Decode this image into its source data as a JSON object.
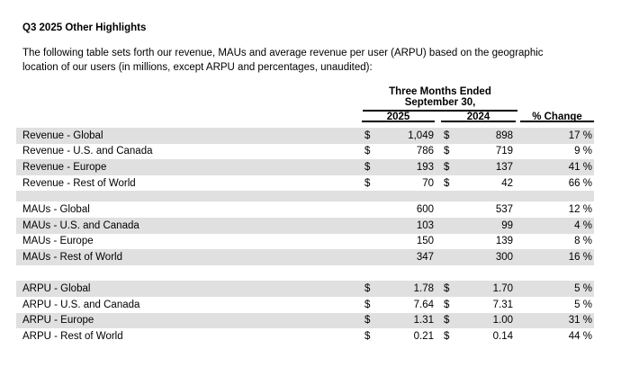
{
  "page": {
    "title": "Q3 2025 Other Highlights",
    "intro_line1": "The following table sets forth our revenue, MAUs and average revenue per user (ARPU) based on the geographic",
    "intro_line2": "location of our users (in millions, except ARPU and percentages, unaudited):"
  },
  "table": {
    "header": {
      "period_line1": "Three Months Ended",
      "period_line2": "September 30,",
      "col_2025": "2025",
      "col_2024": "2024",
      "pct_change": "% Change"
    },
    "colors": {
      "row_shading": "#e0e0e0",
      "rule": "#000000",
      "text": "#000000"
    },
    "rows": [
      {
        "label": "Revenue - Global",
        "cur1": "$",
        "v2025": "1,049",
        "cur2": "$",
        "v2024": "898",
        "change": "17 %",
        "shaded": true
      },
      {
        "label": "Revenue - U.S. and Canada",
        "cur1": "$",
        "v2025": "786",
        "cur2": "$",
        "v2024": "719",
        "change": "9 %",
        "shaded": false
      },
      {
        "label": "Revenue - Europe",
        "cur1": "$",
        "v2025": "193",
        "cur2": "$",
        "v2024": "137",
        "change": "41 %",
        "shaded": true
      },
      {
        "label": "Revenue - Rest of World",
        "cur1": "$",
        "v2025": "70",
        "cur2": "$",
        "v2024": "42",
        "change": "66 %",
        "shaded": false
      },
      {
        "spacer": "gray"
      },
      {
        "label": "MAUs - Global",
        "cur1": "",
        "v2025": "600",
        "cur2": "",
        "v2024": "537",
        "change": "12 %",
        "shaded": false
      },
      {
        "label": "MAUs - U.S. and Canada",
        "cur1": "",
        "v2025": "103",
        "cur2": "",
        "v2024": "99",
        "change": "4 %",
        "shaded": true
      },
      {
        "label": "MAUs - Europe",
        "cur1": "",
        "v2025": "150",
        "cur2": "",
        "v2024": "139",
        "change": "8 %",
        "shaded": false
      },
      {
        "label": "MAUs - Rest of World",
        "cur1": "",
        "v2025": "347",
        "cur2": "",
        "v2024": "300",
        "change": "16 %",
        "shaded": true
      },
      {
        "spacer": "white"
      },
      {
        "label": "ARPU - Global",
        "cur1": "$",
        "v2025": "1.78",
        "cur2": "$",
        "v2024": "1.70",
        "change": "5 %",
        "shaded": true
      },
      {
        "label": "ARPU - U.S. and Canada",
        "cur1": "$",
        "v2025": "7.64",
        "cur2": "$",
        "v2024": "7.31",
        "change": "5 %",
        "shaded": false
      },
      {
        "label": "ARPU - Europe",
        "cur1": "$",
        "v2025": "1.31",
        "cur2": "$",
        "v2024": "1.00",
        "change": "31 %",
        "shaded": true
      },
      {
        "label": "ARPU - Rest of World",
        "cur1": "$",
        "v2025": "0.21",
        "cur2": "$",
        "v2024": "0.14",
        "change": "44 %",
        "shaded": false
      }
    ]
  }
}
